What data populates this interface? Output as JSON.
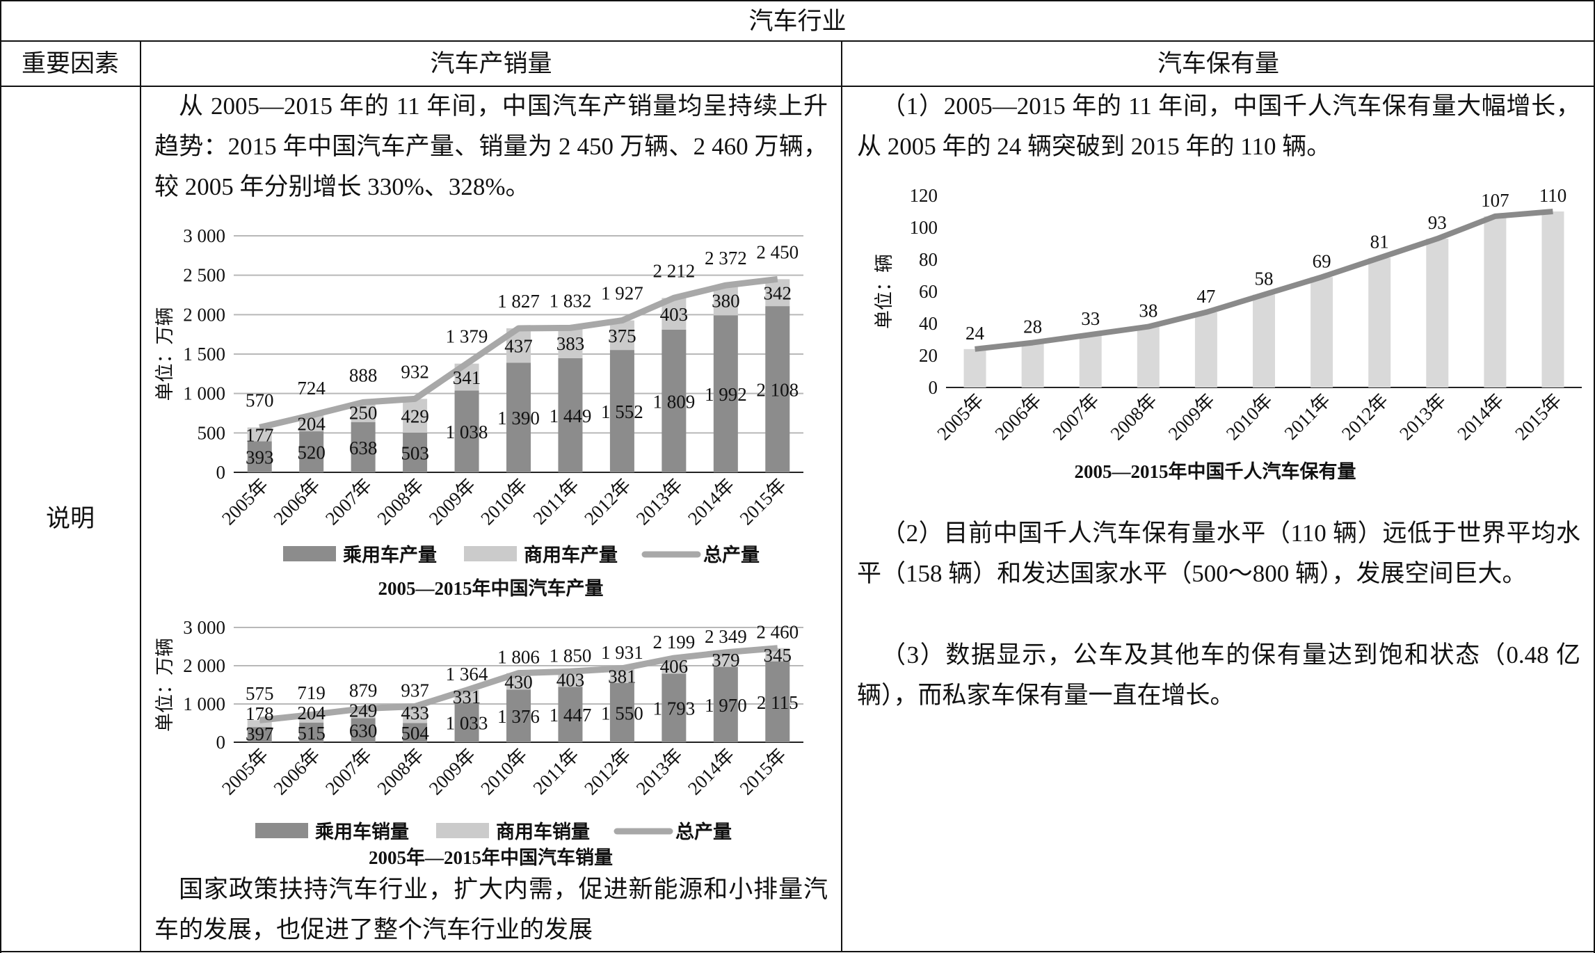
{
  "table": {
    "title": "汽车行业",
    "headers": [
      "重要因素",
      "汽车产销量",
      "汽车保有量"
    ],
    "row_label": "说明"
  },
  "middle": {
    "intro": "从 2005—2015 年的 11 年间，中国汽车产销量均呈持续上升趋势：2015 年中国汽车产量、销量为 2 450 万辆、2 460 万辆，较 2005 年分别增长 330%、328%。",
    "conclusion": "国家政策扶持汽车行业，扩大内需，促进新能源和小排量汽车的发展，也促进了整个汽车行业的发展"
  },
  "right": {
    "p1": "（1）2005—2015 年的 11 年间，中国千人汽车保有量大幅增长，从 2005 年的 24 辆突破到 2015 年的 110 辆。",
    "p2": "（2）目前中国千人汽车保有量水平（110 辆）远低于世界平均水平（158 辆）和发达国家水平（500～800 辆），发展空间巨大。",
    "p3": "（3）数据显示，公车及其他车的保有量达到饱和状态（0.48 亿辆），而私家车保有量一直在增长。"
  },
  "colors": {
    "passenger": "#8c8c8c",
    "commercial": "#cbcbcb",
    "total_line": "#a8a8a8",
    "ownership_bar": "#d9d9d9",
    "ownership_line": "#8a8a8a"
  },
  "chart_data": [
    {
      "type": "bar",
      "stacked": true,
      "title": "2005—2015年中国汽车产量",
      "ylabel": "单位：万辆",
      "ylim": [
        0,
        3000
      ],
      "yticks": [
        "0",
        "500",
        "1 000",
        "1 500",
        "2 000",
        "2 500",
        "3 000"
      ],
      "ytick_values": [
        0,
        500,
        1000,
        1500,
        2000,
        2500,
        3000
      ],
      "categories": [
        "2005年",
        "2006年",
        "2007年",
        "2008年",
        "2009年",
        "2010年",
        "2011年",
        "2012年",
        "2013年",
        "2014年",
        "2015年"
      ],
      "series": [
        {
          "name": "乘用车产量",
          "kind": "bar",
          "values": [
            393,
            520,
            638,
            503,
            1038,
            1390,
            1449,
            1552,
            1809,
            1992,
            2108
          ],
          "labels": [
            "393",
            "520",
            "638",
            "503",
            "1 038",
            "1 390",
            "1 449",
            "1 552",
            "1 809",
            "1 992",
            "2 108"
          ]
        },
        {
          "name": "商用车产量",
          "kind": "bar",
          "values": [
            177,
            204,
            250,
            429,
            341,
            437,
            383,
            375,
            403,
            380,
            342
          ],
          "labels": [
            "177",
            "204",
            "250",
            "429",
            "341",
            "437",
            "383",
            "375",
            "403",
            "380",
            "342"
          ]
        },
        {
          "name": "总产量",
          "kind": "line",
          "values": [
            570,
            724,
            888,
            932,
            1379,
            1827,
            1832,
            1927,
            2212,
            2372,
            2450
          ],
          "labels": [
            "570",
            "724",
            "888",
            "932",
            "1 379",
            "1 827",
            "1 832",
            "1 927",
            "2 212",
            "2 372",
            "2 450"
          ]
        }
      ],
      "legend": "bottom",
      "grid": true
    },
    {
      "type": "bar",
      "stacked": true,
      "title": "2005年—2015年中国汽车销量",
      "ylabel": "单位：万辆",
      "ylim": [
        0,
        3000
      ],
      "yticks": [
        "0",
        "1 000",
        "2 000",
        "3 000"
      ],
      "ytick_values": [
        0,
        1000,
        2000,
        3000
      ],
      "categories": [
        "2005年",
        "2006年",
        "2007年",
        "2008年",
        "2009年",
        "2010年",
        "2011年",
        "2012年",
        "2013年",
        "2014年",
        "2015年"
      ],
      "series": [
        {
          "name": "乘用车销量",
          "kind": "bar",
          "values": [
            397,
            515,
            630,
            504,
            1033,
            1376,
            1447,
            1550,
            1793,
            1970,
            2115
          ],
          "labels": [
            "397",
            "515",
            "630",
            "504",
            "1 033",
            "1 376",
            "1 447",
            "1 550",
            "1 793",
            "1 970",
            "2 115"
          ]
        },
        {
          "name": "商用车销量",
          "kind": "bar",
          "values": [
            178,
            204,
            249,
            433,
            331,
            430,
            403,
            381,
            406,
            379,
            345
          ],
          "labels": [
            "178",
            "204",
            "249",
            "433",
            "331",
            "430",
            "403",
            "381",
            "406",
            "379",
            "345"
          ]
        },
        {
          "name": "总产量",
          "kind": "line",
          "values": [
            575,
            719,
            879,
            937,
            1364,
            1806,
            1850,
            1931,
            2199,
            2349,
            2460
          ],
          "labels": [
            "575",
            "719",
            "879",
            "937",
            "1 364",
            "1 806",
            "1 850",
            "1 931",
            "2 199",
            "2 349",
            "2 460"
          ]
        }
      ],
      "legend": "bottom",
      "grid": true
    },
    {
      "type": "bar",
      "title": "2005—2015年中国千人汽车保有量",
      "ylabel": "单位：辆",
      "ylim": [
        0,
        120
      ],
      "yticks": [
        "0",
        "20",
        "40",
        "60",
        "80",
        "100",
        "120"
      ],
      "ytick_values": [
        0,
        20,
        40,
        60,
        80,
        100,
        120
      ],
      "categories": [
        "2005年",
        "2006年",
        "2007年",
        "2008年",
        "2009年",
        "2010年",
        "2011年",
        "2012年",
        "2013年",
        "2014年",
        "2015年"
      ],
      "series": [
        {
          "name": "千人汽车保有量",
          "kind": "bar+line",
          "values": [
            24,
            28,
            33,
            38,
            47,
            58,
            69,
            81,
            93,
            107,
            110
          ],
          "labels": [
            "24",
            "28",
            "33",
            "38",
            "47",
            "58",
            "69",
            "81",
            "93",
            "107",
            "110"
          ]
        }
      ],
      "grid": false
    }
  ]
}
